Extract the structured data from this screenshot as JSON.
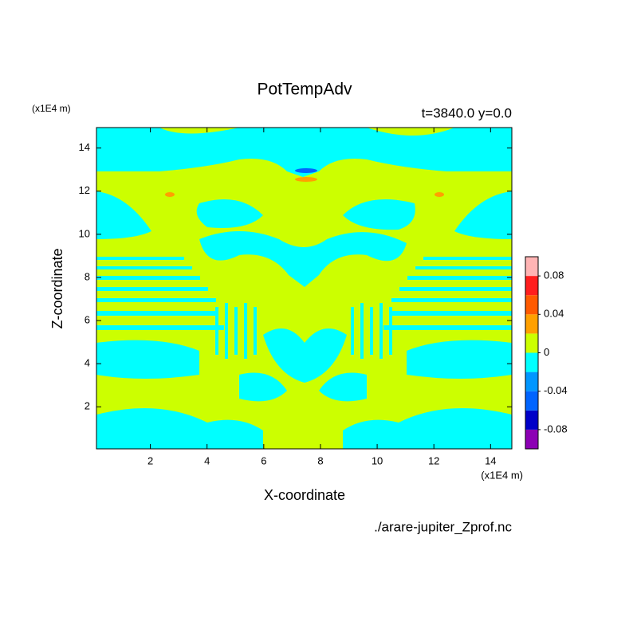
{
  "chart_data": {
    "type": "contour",
    "title": "PotTempAdv",
    "subtitle": "t=3840.0 y=0.0",
    "x_label": "X-coordinate",
    "y_label": "Z-coordinate",
    "x_unit": "(x1E4 m)",
    "y_unit": "(x1E4 m)",
    "source": "./arare-jupiter_Zprof.nc",
    "xlim": [
      0.1,
      14.75
    ],
    "ylim": [
      0.05,
      14.95
    ],
    "xticks": [
      2,
      4,
      6,
      8,
      10,
      12,
      14
    ],
    "yticks": [
      2,
      4,
      6,
      8,
      10,
      12,
      14
    ],
    "levels": [
      -0.1,
      -0.08,
      -0.06,
      -0.04,
      -0.02,
      0,
      0.02,
      0.04,
      0.06,
      0.08,
      0.1
    ],
    "colors": [
      "#8c00b4",
      "#0000c8",
      "#0064ff",
      "#0096ff",
      "#00ffff",
      "#ccff00",
      "#ffa000",
      "#ff5a00",
      "#ff1e1e",
      "#ffb4b4"
    ],
    "colorbar_ticks": [
      -0.08,
      -0.04,
      0,
      0.04,
      0.08
    ]
  }
}
